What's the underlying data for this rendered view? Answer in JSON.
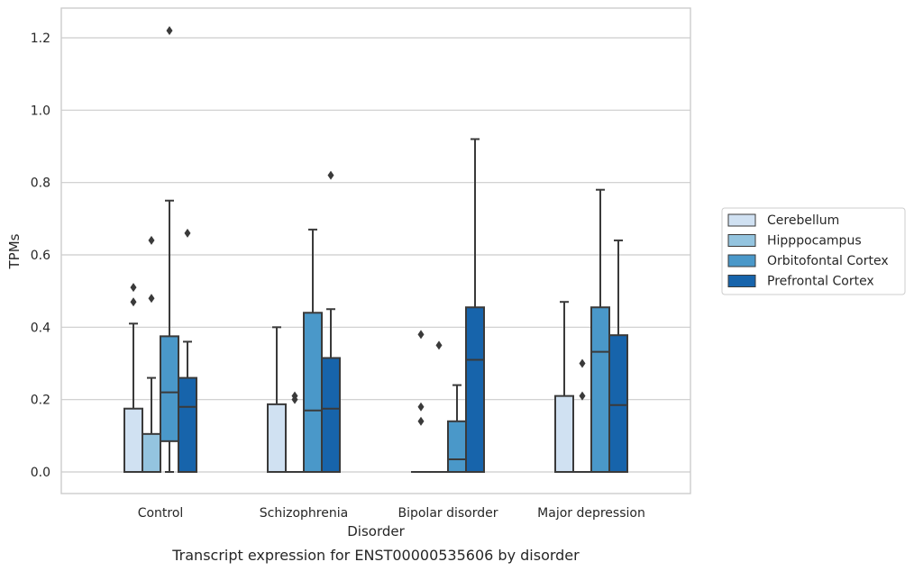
{
  "chart_data": {
    "type": "box",
    "title": "",
    "caption": "Transcript expression for ENST00000535606 by disorder",
    "xlabel": "Disorder",
    "ylabel": "TPMs",
    "ylim": [
      -0.06,
      1.285
    ],
    "yticks": [
      0.0,
      0.2,
      0.4,
      0.6,
      0.8,
      1.0,
      1.2
    ],
    "ytick_labels": [
      "0.0",
      "0.2",
      "0.4",
      "0.6",
      "0.8",
      "1.0",
      "1.2"
    ],
    "grid": "horizontal",
    "legend_position": "right",
    "categories": [
      "Control",
      "Schizophrenia",
      "Bipolar disorder",
      "Major depression"
    ],
    "series": [
      {
        "name": "Cerebellum",
        "color": "#d0e1f2",
        "boxes": [
          {
            "whislo": 0.0,
            "q1": 0.0,
            "med": 0.0,
            "q3": 0.175,
            "whishi": 0.41,
            "fliers": [
              0.47,
              0.51
            ]
          },
          {
            "whislo": 0.0,
            "q1": 0.0,
            "med": 0.0,
            "q3": 0.187,
            "whishi": 0.4,
            "fliers": []
          },
          {
            "whislo": 0.0,
            "q1": 0.0,
            "med": 0.0,
            "q3": 0.0,
            "whishi": 0.0,
            "fliers": [
              0.14,
              0.18,
              0.38
            ]
          },
          {
            "whislo": 0.0,
            "q1": 0.0,
            "med": 0.0,
            "q3": 0.21,
            "whishi": 0.47,
            "fliers": []
          }
        ]
      },
      {
        "name": "Hipppocampus",
        "color": "#94c4df",
        "boxes": [
          {
            "whislo": 0.0,
            "q1": 0.0,
            "med": 0.0,
            "q3": 0.105,
            "whishi": 0.26,
            "fliers": [
              0.48,
              0.64
            ]
          },
          {
            "whislo": 0.0,
            "q1": 0.0,
            "med": 0.0,
            "q3": 0.0,
            "whishi": 0.0,
            "fliers": [
              0.2,
              0.21
            ]
          },
          {
            "whislo": 0.0,
            "q1": 0.0,
            "med": 0.0,
            "q3": 0.0,
            "whishi": 0.0,
            "fliers": [
              0.35
            ]
          },
          {
            "whislo": 0.0,
            "q1": 0.0,
            "med": 0.0,
            "q3": 0.0,
            "whishi": 0.0,
            "fliers": [
              0.21,
              0.3
            ]
          }
        ]
      },
      {
        "name": "Orbitofontal Cortex",
        "color": "#4a98c9",
        "boxes": [
          {
            "whislo": 0.0,
            "q1": 0.085,
            "med": 0.22,
            "q3": 0.375,
            "whishi": 0.75,
            "fliers": [
              1.22
            ]
          },
          {
            "whislo": 0.0,
            "q1": 0.0,
            "med": 0.17,
            "q3": 0.44,
            "whishi": 0.67,
            "fliers": []
          },
          {
            "whislo": 0.0,
            "q1": 0.0,
            "med": 0.035,
            "q3": 0.14,
            "whishi": 0.24,
            "fliers": []
          },
          {
            "whislo": 0.0,
            "q1": 0.0,
            "med": 0.332,
            "q3": 0.455,
            "whishi": 0.78,
            "fliers": []
          }
        ]
      },
      {
        "name": "Prefrontal Cortex",
        "color": "#1764ab",
        "boxes": [
          {
            "whislo": 0.0,
            "q1": 0.0,
            "med": 0.18,
            "q3": 0.26,
            "whishi": 0.36,
            "fliers": [
              0.66
            ]
          },
          {
            "whislo": 0.0,
            "q1": 0.0,
            "med": 0.175,
            "q3": 0.315,
            "whishi": 0.45,
            "fliers": [
              0.82
            ]
          },
          {
            "whislo": 0.0,
            "q1": 0.0,
            "med": 0.31,
            "q3": 0.455,
            "whishi": 0.92,
            "fliers": []
          },
          {
            "whislo": 0.0,
            "q1": 0.0,
            "med": 0.185,
            "q3": 0.378,
            "whishi": 0.64,
            "fliers": []
          }
        ]
      }
    ]
  }
}
